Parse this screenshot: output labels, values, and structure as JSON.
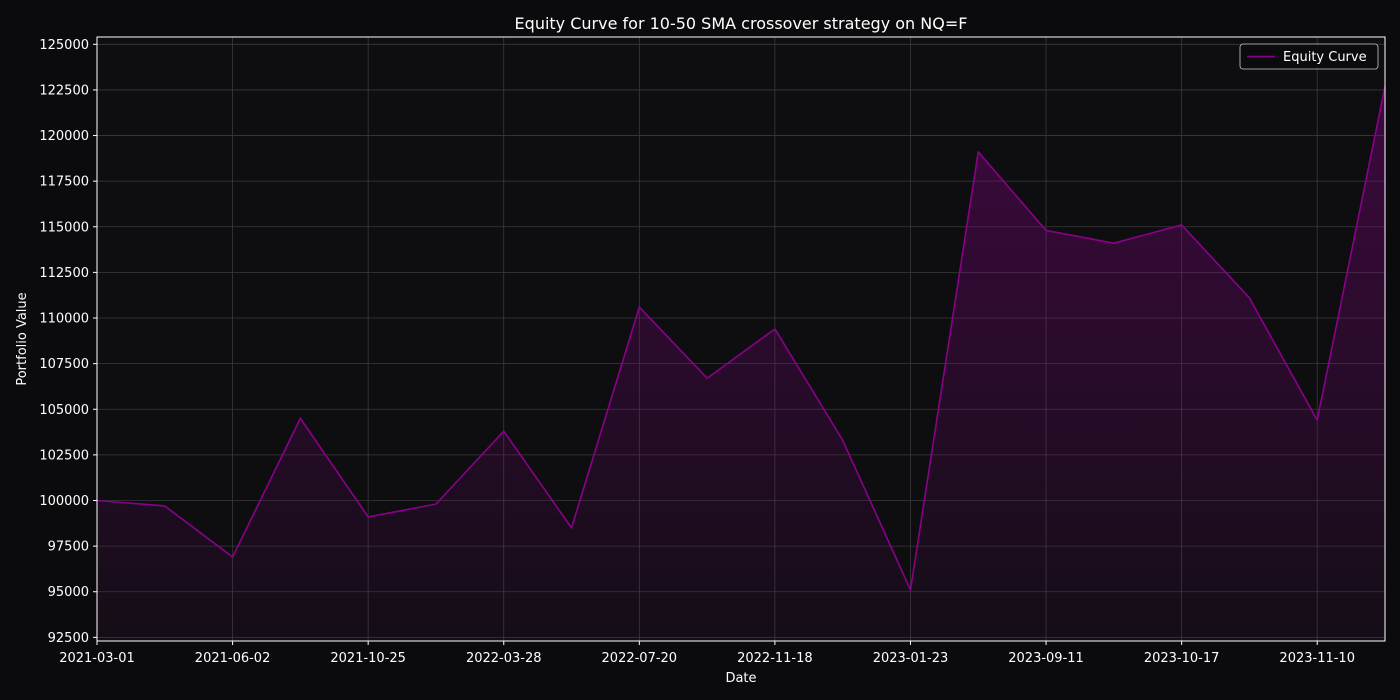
{
  "chart_data": {
    "type": "area",
    "title": "Equity Curve for 10-50 SMA crossover strategy on NQ=F",
    "xlabel": "Date",
    "ylabel": "Portfolio Value",
    "x_tick_labels": [
      "2021-03-01",
      "2021-06-02",
      "2021-10-25",
      "2022-03-28",
      "2022-07-20",
      "2022-11-18",
      "2023-01-23",
      "2023-09-11",
      "2023-10-17",
      "2023-11-10"
    ],
    "y_ticks": [
      92500,
      95000,
      97500,
      100000,
      102500,
      105000,
      107500,
      110000,
      112500,
      115000,
      117500,
      120000,
      122500,
      125000
    ],
    "ylim": [
      92300,
      125400
    ],
    "grid": true,
    "legend_position": "top-right",
    "colors": {
      "background": "#0b0b0d",
      "plot_background": "#0e0e10",
      "line": "#8a008a",
      "fill": "#8a008a",
      "grid": "#3a3a3d",
      "text": "#ffffff",
      "axes": "#ffffff"
    },
    "series": [
      {
        "name": "Equity Curve",
        "values": [
          100000,
          99700,
          96900,
          104500,
          99100,
          99800,
          103800,
          98500,
          110600,
          106700,
          109400,
          103300,
          95100,
          119100,
          114800,
          114100,
          115100,
          111100,
          104400,
          122700
        ]
      }
    ]
  }
}
